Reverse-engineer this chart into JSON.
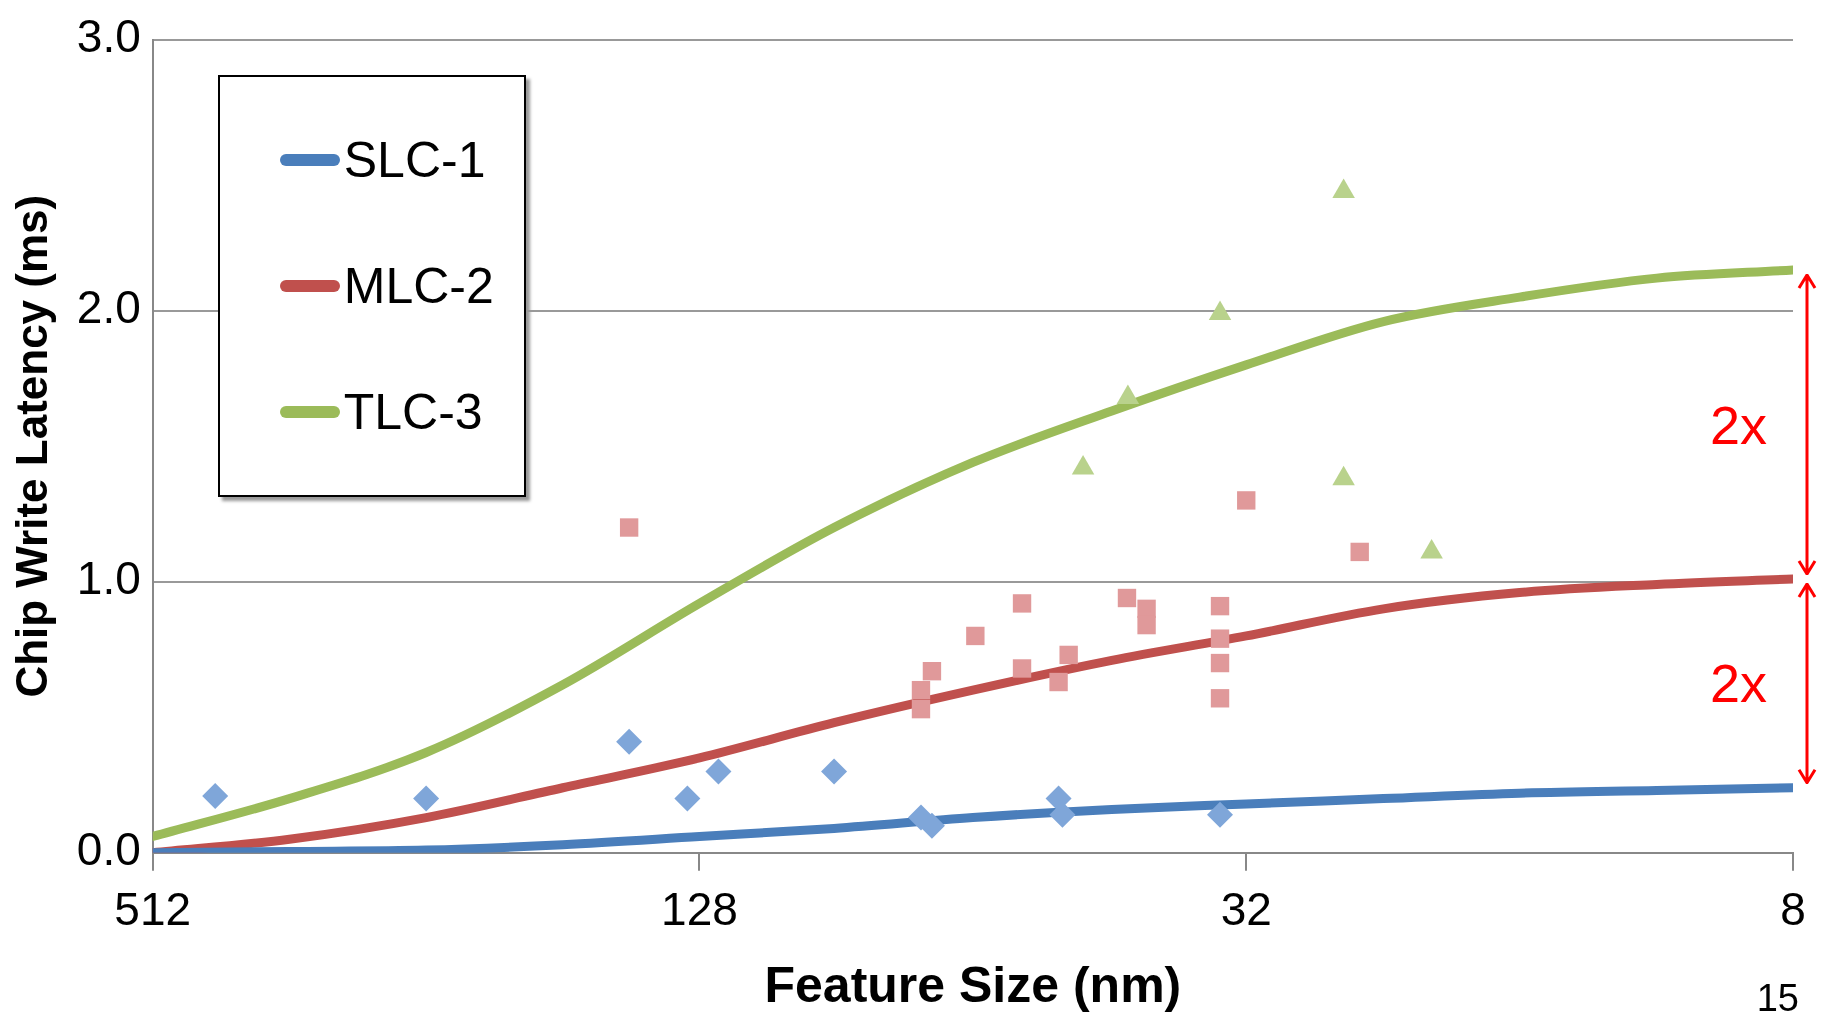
{
  "chart_data": {
    "type": "scatter",
    "xlabel": "Feature Size (nm)",
    "ylabel": "Chip Write Latency (ms)",
    "log": "x",
    "xlim": [
      512,
      8
    ],
    "xticks": [
      512,
      128,
      32,
      8
    ],
    "ylim": [
      0,
      3
    ],
    "yticks": [
      {
        "value": 0,
        "label": "0.0"
      },
      {
        "value": 1,
        "label": "1.0"
      },
      {
        "value": 2,
        "label": "2.0"
      },
      {
        "value": 3,
        "label": "3.0"
      }
    ],
    "grid": "y",
    "legend": "top left",
    "series": [
      {
        "marker": "diamond",
        "color": "#7fa6d9",
        "x": [
          437,
          256,
          153,
          132,
          122,
          91,
          73,
          71,
          51.5,
          51,
          34.2
        ],
        "values": [
          0.21,
          0.2,
          0.41,
          0.2,
          0.3,
          0.3,
          0.13,
          0.1,
          0.2,
          0.14,
          0.14
        ]
      },
      {
        "marker": "square",
        "color": "#e0999a",
        "x": [
          153,
          73,
          73,
          71,
          63.6,
          56.5,
          56.5,
          51.5,
          50.2,
          43.3,
          41.2,
          41.2,
          34.2,
          34.2,
          34.2,
          34.2,
          32,
          24
        ],
        "values": [
          1.2,
          0.6,
          0.53,
          0.67,
          0.8,
          0.92,
          0.68,
          0.63,
          0.73,
          0.94,
          0.9,
          0.84,
          0.91,
          0.79,
          0.7,
          0.57,
          1.3,
          1.11
        ]
      },
      {
        "marker": "triangle",
        "color": "#b9d28c",
        "x": [
          48.4,
          43.2,
          34.2,
          25,
          25,
          20
        ],
        "values": [
          1.42,
          1.68,
          1.99,
          2.44,
          1.38,
          1.11
        ]
      },
      {
        "type": "line",
        "marker": "none",
        "name": "SLC-1",
        "color": "#4a7ebb",
        "x": [
          512,
          362,
          256,
          181,
          128,
          91,
          64,
          45,
          32,
          22.6,
          16,
          11.3,
          8
        ],
        "values": [
          0,
          0.005,
          0.01,
          0.03,
          0.06,
          0.09,
          0.13,
          0.16,
          0.18,
          0.2,
          0.22,
          0.23,
          0.24
        ]
      },
      {
        "type": "line",
        "marker": "none",
        "name": "MLC-2",
        "color": "#c0504d",
        "x": [
          512,
          362,
          256,
          181,
          128,
          91,
          64,
          45,
          32,
          22.6,
          16,
          11.3,
          8
        ],
        "values": [
          0,
          0.05,
          0.13,
          0.24,
          0.35,
          0.48,
          0.6,
          0.71,
          0.8,
          0.9,
          0.96,
          0.99,
          1.01
        ]
      },
      {
        "type": "line",
        "marker": "none",
        "name": "TLC-3",
        "color": "#9bbb59",
        "x": [
          512,
          362,
          256,
          181,
          128,
          91,
          64,
          45,
          32,
          22.6,
          16,
          11.3,
          8
        ],
        "values": [
          0.06,
          0.2,
          0.37,
          0.62,
          0.92,
          1.2,
          1.44,
          1.63,
          1.8,
          1.96,
          2.05,
          2.12,
          2.15
        ]
      }
    ],
    "annotations": [
      "2x",
      "2x",
      "15"
    ]
  }
}
